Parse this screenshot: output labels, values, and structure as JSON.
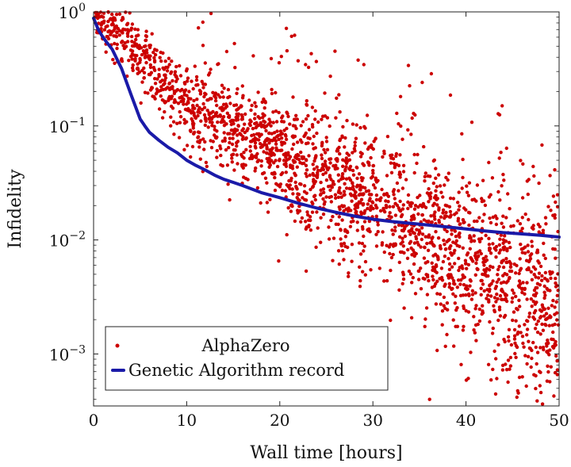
{
  "chart_data": {
    "type": "scatter",
    "xlabel": "Wall time [hours]",
    "ylabel": "Infidelity",
    "xlim": [
      0,
      50
    ],
    "ylim": [
      0.00035,
      1
    ],
    "y_scale": "log",
    "x_ticks": [
      0,
      10,
      20,
      30,
      40,
      50
    ],
    "y_ticks": [
      {
        "value": 1,
        "base": "10",
        "exp": "0"
      },
      {
        "value": 0.1,
        "base": "10",
        "exp": "−1"
      },
      {
        "value": 0.01,
        "base": "10",
        "exp": "−2"
      },
      {
        "value": 0.001,
        "base": "10",
        "exp": "−3"
      }
    ],
    "grid": false,
    "legend_position": "bottom-left",
    "series": [
      {
        "name": "AlphaZero",
        "kind": "scatter",
        "color": "#cc0000",
        "trend_points": [
          {
            "x": 0,
            "y": 1.0
          },
          {
            "x": 3,
            "y": 0.65
          },
          {
            "x": 6,
            "y": 0.3
          },
          {
            "x": 10,
            "y": 0.15
          },
          {
            "x": 15,
            "y": 0.085
          },
          {
            "x": 20,
            "y": 0.055
          },
          {
            "x": 25,
            "y": 0.035
          },
          {
            "x": 30,
            "y": 0.02
          },
          {
            "x": 35,
            "y": 0.012
          },
          {
            "x": 40,
            "y": 0.006
          },
          {
            "x": 45,
            "y": 0.0035
          },
          {
            "x": 50,
            "y": 0.0022
          }
        ],
        "n_points": 2400
      },
      {
        "name": "Genetic Algorithm record",
        "kind": "line",
        "color": "#1a1aa8",
        "x": [
          0,
          0.5,
          1,
          1.5,
          2,
          3,
          4,
          5,
          5.5,
          6,
          7,
          8,
          9,
          10,
          11,
          12,
          13,
          14,
          15,
          16,
          18,
          20,
          22,
          24,
          26,
          28,
          30,
          32,
          34,
          36,
          38,
          40,
          42,
          44,
          46,
          48,
          50
        ],
        "y": [
          0.88,
          0.7,
          0.6,
          0.53,
          0.47,
          0.32,
          0.19,
          0.115,
          0.1,
          0.088,
          0.075,
          0.065,
          0.058,
          0.05,
          0.045,
          0.041,
          0.037,
          0.034,
          0.032,
          0.03,
          0.026,
          0.0235,
          0.021,
          0.019,
          0.0175,
          0.0162,
          0.0152,
          0.0145,
          0.014,
          0.0135,
          0.013,
          0.0125,
          0.012,
          0.0116,
          0.0113,
          0.011,
          0.0106
        ]
      }
    ]
  }
}
